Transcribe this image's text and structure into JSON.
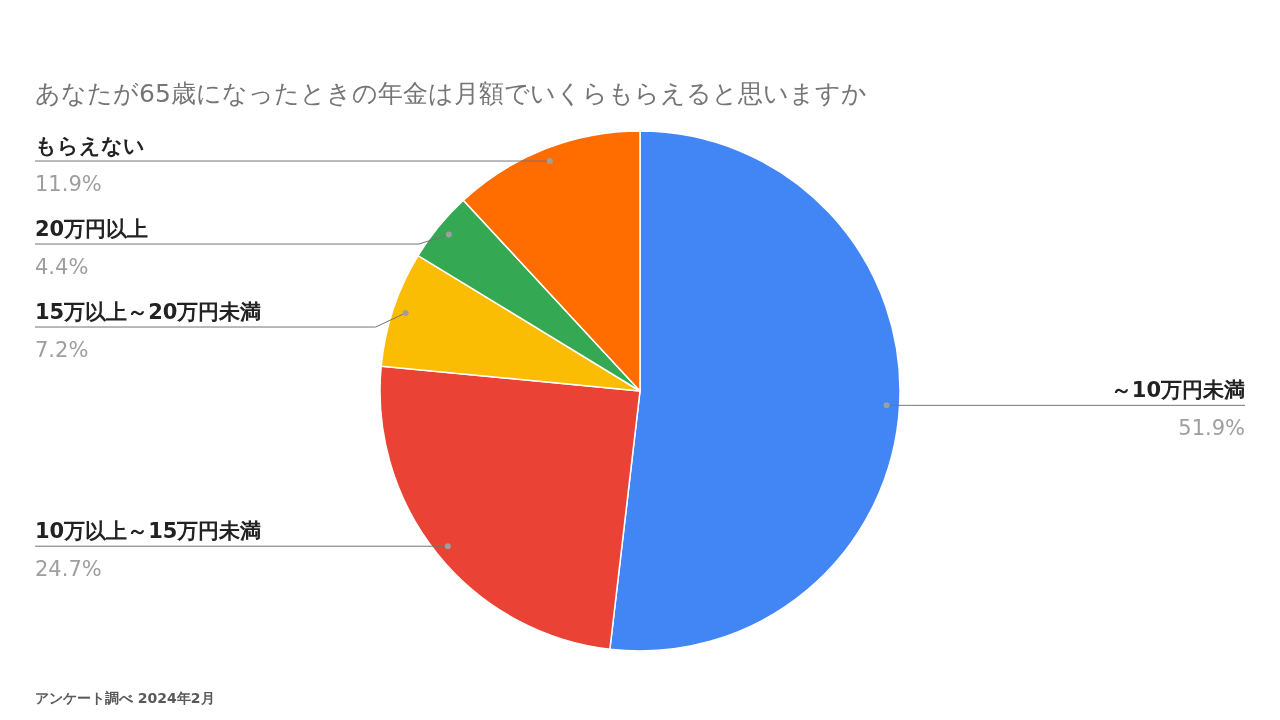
{
  "chart_data": {
    "type": "pie",
    "title": "あなたが65歳になったときの年金は月額でいくらもらえると思いますか",
    "categories": [
      "～10万円未満",
      "10万以上～15万円未満",
      "15万以上～20万円未満",
      "20万円以上",
      "もらえない"
    ],
    "values": [
      51.9,
      24.7,
      7.2,
      4.4,
      11.9
    ],
    "colors": [
      "#4285f4",
      "#ea4335",
      "#fbbc04",
      "#34a853",
      "#ff6d01"
    ],
    "value_labels": [
      "51.9%",
      "24.7%",
      "7.2%",
      "4.4%",
      "11.9%"
    ],
    "annotations": [
      "アンケート調べ 2024年2月"
    ]
  }
}
